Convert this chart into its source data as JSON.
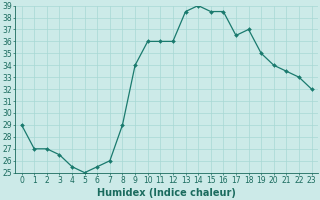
{
  "x": [
    0,
    1,
    2,
    3,
    4,
    5,
    6,
    7,
    8,
    9,
    10,
    11,
    12,
    13,
    14,
    15,
    16,
    17,
    18,
    19,
    20,
    21,
    22,
    23
  ],
  "y": [
    29,
    27,
    27,
    26.5,
    25.5,
    25,
    25.5,
    26,
    29,
    34,
    36,
    36,
    36,
    38.5,
    39,
    38.5,
    38.5,
    36.5,
    37,
    35,
    34,
    33.5,
    33,
    32
  ],
  "line_color": "#1a7a6e",
  "marker_color": "#1a7a6e",
  "bg_color": "#cceae8",
  "grid_color": "#a8d8d4",
  "xlabel": "Humidex (Indice chaleur)",
  "ylim": [
    25,
    39
  ],
  "xlim": [
    -0.5,
    23.5
  ],
  "yticks": [
    25,
    26,
    27,
    28,
    29,
    30,
    31,
    32,
    33,
    34,
    35,
    36,
    37,
    38,
    39
  ],
  "xticks": [
    0,
    1,
    2,
    3,
    4,
    5,
    6,
    7,
    8,
    9,
    10,
    11,
    12,
    13,
    14,
    15,
    16,
    17,
    18,
    19,
    20,
    21,
    22,
    23
  ],
  "text_color": "#1a6b5e",
  "label_fontsize": 7,
  "tick_fontsize": 5.5
}
